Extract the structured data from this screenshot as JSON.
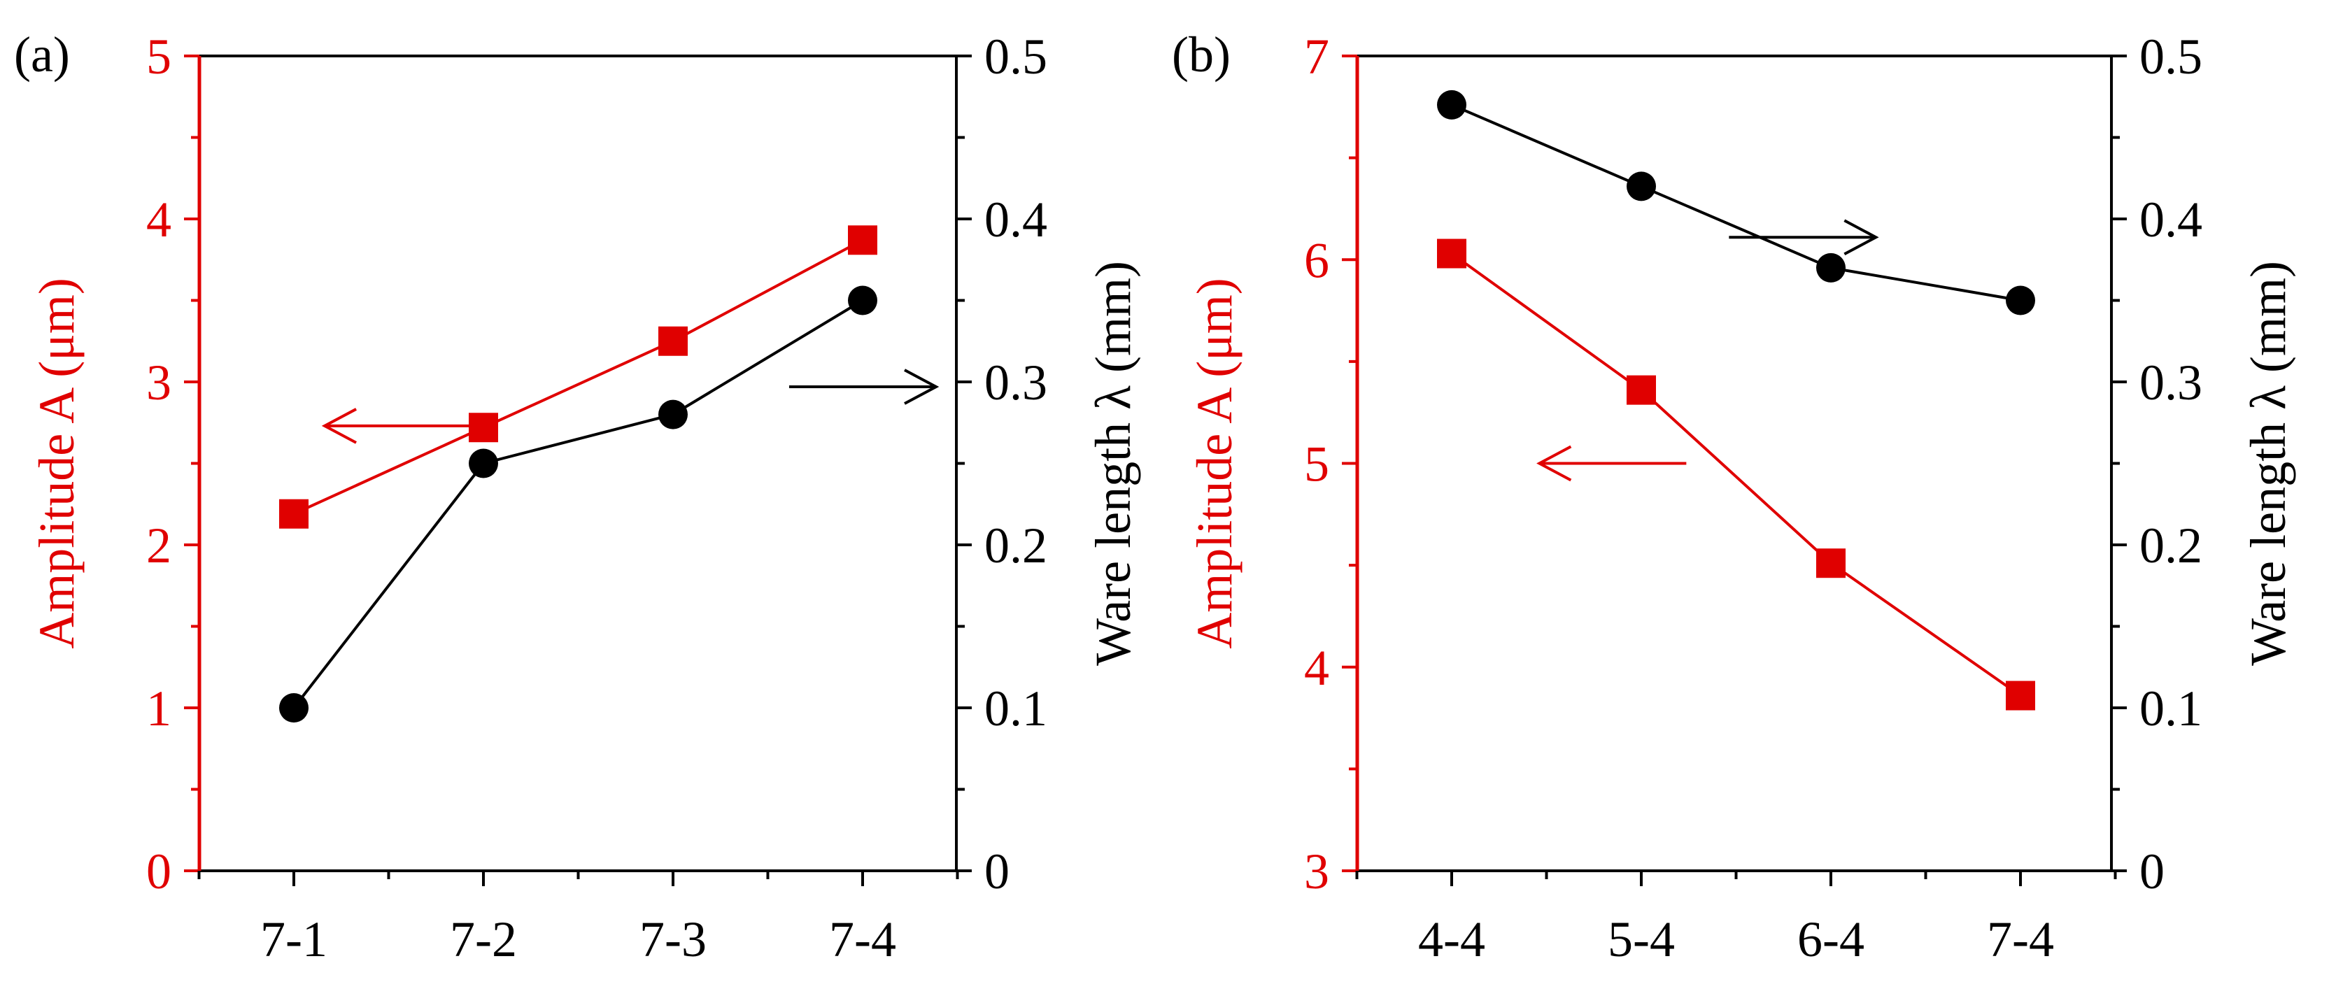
{
  "colors": {
    "amplitude": "#e00000",
    "wavelength": "#000000"
  },
  "chart_data": [
    {
      "type": "line",
      "panel_label": "(a)",
      "categories": [
        "7-1",
        "7-2",
        "7-3",
        "7-4"
      ],
      "left_axis": {
        "label": "Amplitude A (μm)",
        "range": [
          0,
          5
        ],
        "ticks": [
          "0",
          "1",
          "2",
          "3",
          "4",
          "5"
        ],
        "tick_values": [
          0,
          1,
          2,
          3,
          4,
          5
        ],
        "minor_values": [
          0.5,
          1.5,
          2.5,
          3.5,
          4.5
        ]
      },
      "right_axis": {
        "label": "Ware length λ (mm)",
        "range": [
          0,
          0.5
        ],
        "ticks": [
          "0",
          "0.1",
          "0.2",
          "0.3",
          "0.4",
          "0.5"
        ],
        "tick_values": [
          0,
          0.1,
          0.2,
          0.3,
          0.4,
          0.5
        ],
        "minor_values": [
          0.05,
          0.15,
          0.25,
          0.35,
          0.45
        ]
      },
      "series": [
        {
          "name": "Amplitude A",
          "axis": "left",
          "marker": "square",
          "values": [
            2.19,
            2.72,
            3.25,
            3.87
          ]
        },
        {
          "name": "Ware length λ",
          "axis": "right",
          "marker": "circle",
          "values": [
            0.1,
            0.25,
            0.28,
            0.35
          ]
        }
      ],
      "annotations": [
        {
          "text": "←",
          "series": "Amplitude A",
          "direction": "left",
          "at_x": 0.55,
          "at_y_left": 2.73
        },
        {
          "text": "→",
          "series": "Ware length λ",
          "direction": "right",
          "at_x": 3.0,
          "at_y_left": 2.97
        }
      ]
    },
    {
      "type": "line",
      "panel_label": "(b)",
      "categories": [
        "4-4",
        "5-4",
        "6-4",
        "7-4"
      ],
      "left_axis": {
        "label": "Amplitude A (μm)",
        "range": [
          3,
          7
        ],
        "ticks": [
          "3",
          "4",
          "5",
          "6",
          "7"
        ],
        "tick_values": [
          3,
          4,
          5,
          6,
          7
        ],
        "minor_values": [
          3.5,
          4.5,
          5.5,
          6.5
        ]
      },
      "right_axis": {
        "label": "Ware length λ (mm)",
        "range": [
          0,
          0.5
        ],
        "ticks": [
          "0",
          "0.1",
          "0.2",
          "0.3",
          "0.4",
          "0.5"
        ],
        "tick_values": [
          0,
          0.1,
          0.2,
          0.3,
          0.4,
          0.5
        ],
        "minor_values": [
          0.05,
          0.15,
          0.25,
          0.35,
          0.45
        ]
      },
      "series": [
        {
          "name": "Amplitude A",
          "axis": "left",
          "marker": "square",
          "values": [
            6.03,
            5.36,
            4.51,
            3.86
          ]
        },
        {
          "name": "Ware length λ",
          "axis": "right",
          "marker": "circle",
          "values": [
            0.47,
            0.42,
            0.37,
            0.35
          ]
        }
      ],
      "annotations": [
        {
          "text": "←",
          "series": "Amplitude A",
          "direction": "left",
          "at_x": 0.85,
          "at_y_left": 5.0
        },
        {
          "text": "→",
          "series": "Ware length λ",
          "direction": "right",
          "at_x": 1.85,
          "at_y_left": 6.11
        }
      ]
    }
  ]
}
